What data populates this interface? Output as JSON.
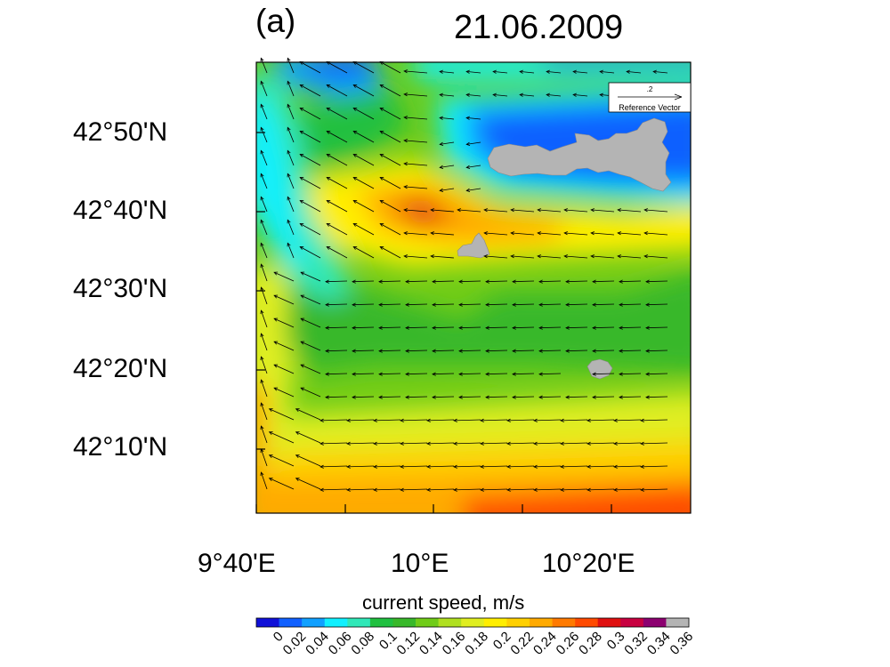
{
  "panel_label": "(a)",
  "date": "21.06.2009",
  "y_tick_labels": [
    "42°50'N",
    "42°40'N",
    "42°30'N",
    "42°20'N",
    "42°10'N"
  ],
  "x_tick_labels": [
    "9°40'E",
    "10°E",
    "10°20'E"
  ],
  "reference_vector": {
    "value": ".2",
    "label": "Reference Vector"
  },
  "colorbar": {
    "title": "current speed, m/s",
    "ticks": [
      "0",
      "0.02",
      "0.04",
      "0.06",
      "0.08",
      "0.1",
      "0.12",
      "0.14",
      "0.16",
      "0.18",
      "0.2",
      "0.22",
      "0.24",
      "0.26",
      "0.28",
      "0.3",
      "0.32",
      "0.34",
      "0.36"
    ],
    "colors": [
      "#1010d8",
      "#1060ff",
      "#10a0ff",
      "#10f0ff",
      "#30e8b8",
      "#20c040",
      "#38b82a",
      "#70cc18",
      "#b0e020",
      "#e0ee20",
      "#ffee00",
      "#ffd000",
      "#ffaa00",
      "#ff7a00",
      "#ff4a00",
      "#e01010",
      "#c80040",
      "#8c0070",
      "#b4b4b4"
    ]
  },
  "land_color": "#b4b4b4"
}
